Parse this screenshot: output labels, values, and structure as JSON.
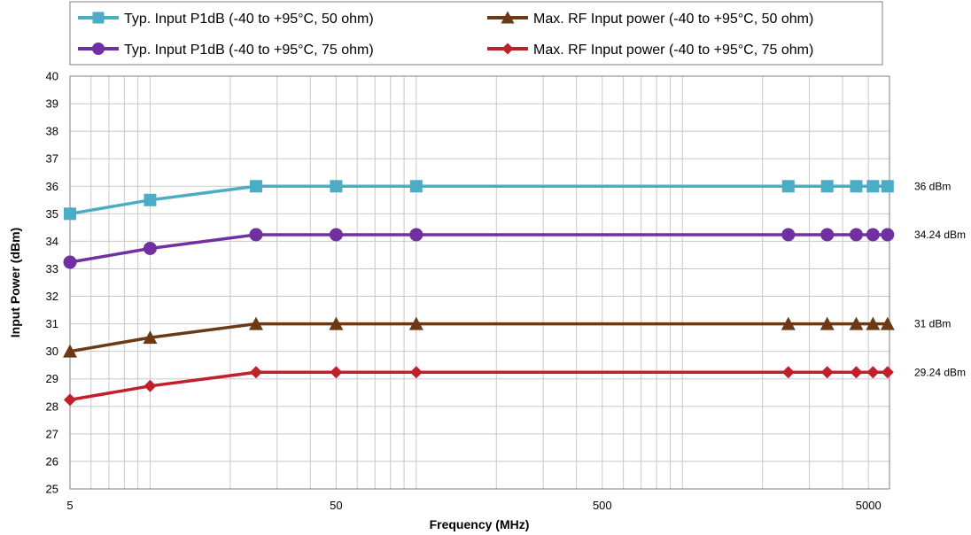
{
  "chart_data": {
    "type": "line",
    "xlabel": "Frequency (MHz)",
    "ylabel": "Input Power  (dBm)",
    "x_scale": "log",
    "xlim": [
      5,
      6000
    ],
    "ylim": [
      25,
      40
    ],
    "x_ticks": [
      {
        "value": 5,
        "label": "5"
      },
      {
        "value": 50,
        "label": "50"
      },
      {
        "value": 500,
        "label": "500"
      },
      {
        "value": 5000,
        "label": "5000"
      }
    ],
    "y_ticks": [
      {
        "value": 25,
        "label": "25"
      },
      {
        "value": 26,
        "label": "26"
      },
      {
        "value": 27,
        "label": "27"
      },
      {
        "value": 28,
        "label": "28"
      },
      {
        "value": 29,
        "label": "29"
      },
      {
        "value": 30,
        "label": "30"
      },
      {
        "value": 31,
        "label": "31"
      },
      {
        "value": 32,
        "label": "32"
      },
      {
        "value": 33,
        "label": "33"
      },
      {
        "value": 34,
        "label": "34"
      },
      {
        "value": 35,
        "label": "35"
      },
      {
        "value": 36,
        "label": "36"
      },
      {
        "value": 37,
        "label": "37"
      },
      {
        "value": 38,
        "label": "38"
      },
      {
        "value": 39,
        "label": "39"
      },
      {
        "value": 40,
        "label": "40"
      }
    ],
    "grid": true,
    "legend": "top",
    "x": [
      5,
      10,
      25,
      50,
      100,
      2500,
      3500,
      4500,
      5200,
      5900
    ],
    "series": [
      {
        "name": "Typ. Input P1dB (-40 to +95°C, 50 ohm)",
        "color": "#4bacc6",
        "marker": "square",
        "values": [
          35,
          35.5,
          36,
          36,
          36,
          36,
          36,
          36,
          36,
          36
        ],
        "end_label": "36 dBm"
      },
      {
        "name": "Typ. Input P1dB (-40 to +95°C, 75 ohm)",
        "color": "#7030a0",
        "marker": "circle",
        "values": [
          33.24,
          33.74,
          34.24,
          34.24,
          34.24,
          34.24,
          34.24,
          34.24,
          34.24,
          34.24
        ],
        "end_label": "34.24 dBm"
      },
      {
        "name": "Max. RF Input power (-40 to +95°C, 50 ohm)",
        "color": "#6b3a14",
        "marker": "triangle",
        "values": [
          30,
          30.5,
          31,
          31,
          31,
          31,
          31,
          31,
          31,
          31
        ],
        "end_label": "31 dBm"
      },
      {
        "name": "Max. RF Input power (-40 to +95°C, 75 ohm)",
        "color": "#c0202a",
        "marker": "diamond",
        "values": [
          28.24,
          28.74,
          29.24,
          29.24,
          29.24,
          29.24,
          29.24,
          29.24,
          29.24,
          29.24
        ],
        "end_label": "29.24 dBm"
      }
    ]
  }
}
